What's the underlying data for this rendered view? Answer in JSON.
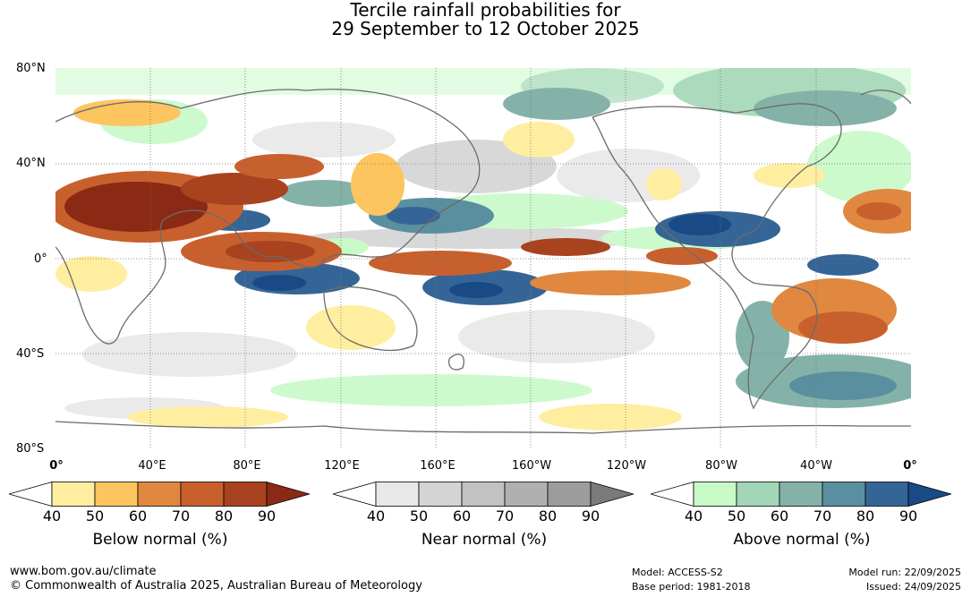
{
  "title": {
    "line1": "Tercile rainfall probabilities for",
    "line2": "29 September to 12 October 2025"
  },
  "map": {
    "lat_labels": [
      "80°N",
      "40°N",
      "0°",
      "40°S",
      "80°S"
    ],
    "lon_labels": [
      "0°",
      "40°E",
      "80°E",
      "120°E",
      "160°E",
      "160°W",
      "120°W",
      "80°W",
      "40°W",
      "0°"
    ]
  },
  "colorbars": [
    {
      "title": "Below normal (%)",
      "ticks": [
        "40",
        "50",
        "60",
        "70",
        "80",
        "90"
      ],
      "colors": [
        "#ffffff",
        "#ffeea0",
        "#fdc55f",
        "#e0883f",
        "#c8602e",
        "#a8421f",
        "#8b2a14"
      ]
    },
    {
      "title": "Near normal (%)",
      "ticks": [
        "40",
        "50",
        "60",
        "70",
        "80",
        "90"
      ],
      "colors": [
        "#ffffff",
        "#e8e8e8",
        "#d4d4d4",
        "#c2c2c2",
        "#b0b0b0",
        "#9c9c9c",
        "#7a7a7a"
      ]
    },
    {
      "title": "Above normal (%)",
      "ticks": [
        "40",
        "50",
        "60",
        "70",
        "80",
        "90"
      ],
      "colors": [
        "#ffffff",
        "#c8fac8",
        "#a2d6b6",
        "#84b2a8",
        "#5a8fa0",
        "#356596",
        "#1a4a86"
      ]
    }
  ],
  "footer": {
    "website": "www.bom.gov.au/climate",
    "copyright": "© Commonwealth of Australia 2025, Australian Bureau of Meteorology",
    "model": "Model: ACCESS-S2",
    "base_period": "Base period: 1981-2018",
    "model_run": "Model run: 22/09/2025",
    "issued": "Issued: 24/09/2025"
  }
}
